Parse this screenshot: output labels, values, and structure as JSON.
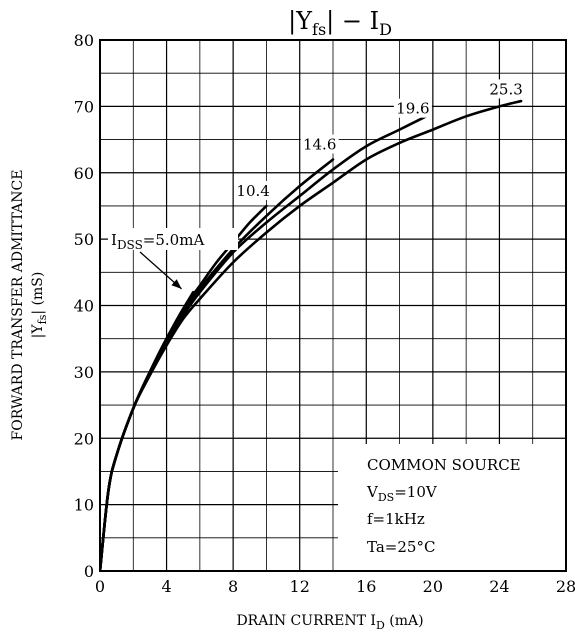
{
  "chart_data": {
    "type": "line",
    "title": {
      "pre": "|Y",
      "sub": "fs",
      "post": "| − I",
      "sub2": "D"
    },
    "xlabel": {
      "text": "DRAIN CURRENT  I",
      "sub": "D",
      "unit": "(mA)"
    },
    "ylabel": {
      "line1": "FORWARD TRANSFER ADMITTANCE",
      "line2_pre": "|Y",
      "line2_sub": "fs",
      "line2_post": "|  (mS)"
    },
    "xlim": [
      0,
      28
    ],
    "ylim": [
      0,
      80
    ],
    "xticks": [
      "0",
      "4",
      "8",
      "12",
      "16",
      "20",
      "24",
      "28"
    ],
    "yticks": [
      "0",
      "10",
      "20",
      "30",
      "40",
      "50",
      "60",
      "70",
      "80"
    ],
    "grid": true,
    "series": [
      {
        "name": "5.0",
        "points": [
          [
            0,
            0
          ],
          [
            0.5,
            12
          ],
          [
            1,
            17.5
          ],
          [
            2,
            24.5
          ],
          [
            3,
            30
          ],
          [
            4,
            35
          ],
          [
            5,
            39.5
          ],
          [
            5.6,
            42
          ]
        ]
      },
      {
        "name": "10.4",
        "points": [
          [
            0,
            0
          ],
          [
            0.5,
            12
          ],
          [
            1,
            17.5
          ],
          [
            2,
            24.5
          ],
          [
            3,
            30
          ],
          [
            4,
            35
          ],
          [
            5,
            39.5
          ],
          [
            6,
            43
          ],
          [
            7,
            46.5
          ],
          [
            8,
            49.5
          ],
          [
            9,
            52.5
          ],
          [
            10,
            55
          ]
        ]
      },
      {
        "name": "14.6",
        "points": [
          [
            0,
            0
          ],
          [
            0.5,
            12
          ],
          [
            1,
            17.5
          ],
          [
            2,
            24.5
          ],
          [
            3,
            30
          ],
          [
            4,
            35
          ],
          [
            5,
            39
          ],
          [
            6,
            42.5
          ],
          [
            8,
            48.5
          ],
          [
            10,
            53.5
          ],
          [
            12,
            58
          ],
          [
            14,
            62
          ]
        ]
      },
      {
        "name": "19.6",
        "points": [
          [
            0,
            0
          ],
          [
            0.5,
            12
          ],
          [
            1,
            17.5
          ],
          [
            2,
            24.5
          ],
          [
            3,
            30
          ],
          [
            4,
            34.5
          ],
          [
            5,
            38.5
          ],
          [
            6,
            42
          ],
          [
            8,
            48
          ],
          [
            10,
            52.5
          ],
          [
            12,
            56.5
          ],
          [
            14,
            60.5
          ],
          [
            16,
            64
          ],
          [
            18,
            66.5
          ],
          [
            19.6,
            68.5
          ]
        ]
      },
      {
        "name": "25.3",
        "points": [
          [
            0,
            0
          ],
          [
            0.5,
            12
          ],
          [
            1,
            17.5
          ],
          [
            2,
            24.5
          ],
          [
            3,
            29.5
          ],
          [
            4,
            34
          ],
          [
            5,
            38
          ],
          [
            6,
            41
          ],
          [
            8,
            46.5
          ],
          [
            10,
            51
          ],
          [
            12,
            55
          ],
          [
            14,
            58.5
          ],
          [
            16,
            62
          ],
          [
            18,
            64.5
          ],
          [
            20,
            66.5
          ],
          [
            22,
            68.5
          ],
          [
            24,
            70
          ],
          [
            25.3,
            70.8
          ]
        ]
      }
    ],
    "curve_labels": [
      {
        "text": "25.3",
        "x": 24.4,
        "y": 71.8
      },
      {
        "text": "19.6",
        "x": 18.8,
        "y": 68.9
      },
      {
        "text": "14.6",
        "x": 13.2,
        "y": 63.5
      },
      {
        "text": "10.4",
        "x": 9.2,
        "y": 56.5
      }
    ],
    "idss_label": {
      "pre": "I",
      "sub": "DSS",
      "post": "=5.0mA",
      "arrow_to": [
        4.9,
        42.5
      ]
    },
    "conditions": {
      "line1": "COMMON SOURCE",
      "line2_pre": "V",
      "line2_sub": "DS",
      "line2_post": "=10V",
      "line3": "f=1kHz",
      "line4": "Ta=25°C"
    }
  }
}
